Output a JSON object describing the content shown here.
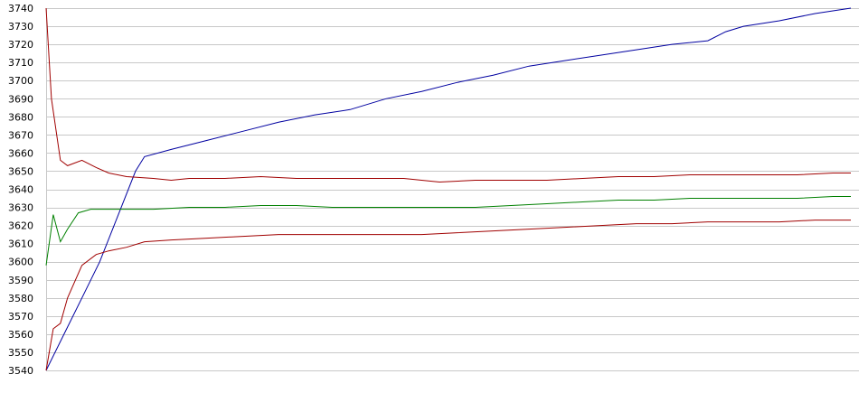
{
  "chart_data": {
    "type": "line",
    "title": "",
    "xlabel": "",
    "ylabel": "",
    "ylim": [
      3540,
      3740
    ],
    "yticks": [
      3540,
      3550,
      3560,
      3570,
      3580,
      3590,
      3600,
      3610,
      3620,
      3630,
      3640,
      3650,
      3660,
      3670,
      3680,
      3690,
      3700,
      3710,
      3720,
      3730,
      3740
    ],
    "grid": true,
    "legend": "none",
    "series": [
      {
        "color": "#0000a0",
        "points": [
          [
            0,
            3540
          ],
          [
            10,
            3560
          ],
          [
            20,
            3580
          ],
          [
            30,
            3600
          ],
          [
            40,
            3625
          ],
          [
            50,
            3650
          ],
          [
            55,
            3658
          ],
          [
            70,
            3662
          ],
          [
            90,
            3667
          ],
          [
            110,
            3672
          ],
          [
            130,
            3677
          ],
          [
            150,
            3681
          ],
          [
            170,
            3684
          ],
          [
            190,
            3690
          ],
          [
            210,
            3694
          ],
          [
            230,
            3699
          ],
          [
            250,
            3703
          ],
          [
            270,
            3708
          ],
          [
            290,
            3711
          ],
          [
            310,
            3714
          ],
          [
            330,
            3717
          ],
          [
            350,
            3720
          ],
          [
            370,
            3722
          ],
          [
            380,
            3727
          ],
          [
            390,
            3730
          ],
          [
            410,
            3733
          ],
          [
            430,
            3737
          ],
          [
            450,
            3740
          ]
        ]
      },
      {
        "color": "#a00000",
        "points": [
          [
            0,
            3740
          ],
          [
            3,
            3690
          ],
          [
            8,
            3656
          ],
          [
            12,
            3653
          ],
          [
            20,
            3656
          ],
          [
            28,
            3652
          ],
          [
            35,
            3649
          ],
          [
            45,
            3647
          ],
          [
            60,
            3646
          ],
          [
            70,
            3645
          ],
          [
            80,
            3646
          ],
          [
            100,
            3646
          ],
          [
            120,
            3647
          ],
          [
            140,
            3646
          ],
          [
            160,
            3646
          ],
          [
            180,
            3646
          ],
          [
            200,
            3646
          ],
          [
            220,
            3644
          ],
          [
            240,
            3645
          ],
          [
            260,
            3645
          ],
          [
            280,
            3645
          ],
          [
            300,
            3646
          ],
          [
            320,
            3647
          ],
          [
            340,
            3647
          ],
          [
            360,
            3648
          ],
          [
            380,
            3648
          ],
          [
            400,
            3648
          ],
          [
            420,
            3648
          ],
          [
            440,
            3649
          ],
          [
            450,
            3649
          ]
        ]
      },
      {
        "color": "#008000",
        "points": [
          [
            0,
            3598
          ],
          [
            4,
            3626
          ],
          [
            8,
            3611
          ],
          [
            12,
            3618
          ],
          [
            18,
            3627
          ],
          [
            25,
            3629
          ],
          [
            35,
            3629
          ],
          [
            60,
            3629
          ],
          [
            80,
            3630
          ],
          [
            100,
            3630
          ],
          [
            120,
            3631
          ],
          [
            140,
            3631
          ],
          [
            160,
            3630
          ],
          [
            180,
            3630
          ],
          [
            200,
            3630
          ],
          [
            220,
            3630
          ],
          [
            240,
            3630
          ],
          [
            260,
            3631
          ],
          [
            280,
            3632
          ],
          [
            300,
            3633
          ],
          [
            320,
            3634
          ],
          [
            340,
            3634
          ],
          [
            360,
            3635
          ],
          [
            380,
            3635
          ],
          [
            400,
            3635
          ],
          [
            420,
            3635
          ],
          [
            440,
            3636
          ],
          [
            450,
            3636
          ]
        ]
      },
      {
        "color": "#a00000",
        "points": [
          [
            0,
            3540
          ],
          [
            4,
            3563
          ],
          [
            8,
            3566
          ],
          [
            12,
            3580
          ],
          [
            20,
            3598
          ],
          [
            28,
            3604
          ],
          [
            35,
            3606
          ],
          [
            45,
            3608
          ],
          [
            55,
            3611
          ],
          [
            70,
            3612
          ],
          [
            90,
            3613
          ],
          [
            110,
            3614
          ],
          [
            130,
            3615
          ],
          [
            150,
            3615
          ],
          [
            170,
            3615
          ],
          [
            190,
            3615
          ],
          [
            210,
            3615
          ],
          [
            230,
            3616
          ],
          [
            250,
            3617
          ],
          [
            270,
            3618
          ],
          [
            290,
            3619
          ],
          [
            310,
            3620
          ],
          [
            330,
            3621
          ],
          [
            350,
            3621
          ],
          [
            370,
            3622
          ],
          [
            390,
            3622
          ],
          [
            410,
            3622
          ],
          [
            430,
            3623
          ],
          [
            450,
            3623
          ]
        ]
      }
    ]
  }
}
